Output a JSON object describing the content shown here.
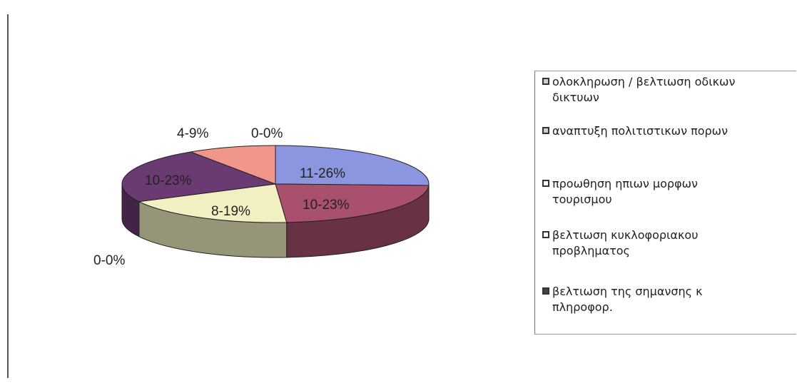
{
  "chart_data": {
    "type": "pie",
    "style": "3d",
    "slices": [
      {
        "label": "11-26%",
        "value": 11,
        "percent": 26,
        "color": "#8C96E0"
      },
      {
        "label": "10-23%",
        "value": 10,
        "percent": 23,
        "color": "#A8506E"
      },
      {
        "label": "8-19%",
        "value": 8,
        "percent": 19,
        "color": "#F2F0C2"
      },
      {
        "label": "10-23%",
        "value": 10,
        "percent": 23,
        "color": "#6A3A72"
      },
      {
        "label": "4-9%",
        "value": 4,
        "percent": 9,
        "color": "#F0968A"
      },
      {
        "label": "0-0%",
        "value": 0,
        "percent": 0,
        "color": "#ffffff"
      },
      {
        "label": "0-0%",
        "value": 0,
        "percent": 0,
        "color": "#ffffff"
      }
    ],
    "legend": [
      {
        "text": "ολοκληρωση / βελτιωση οδικων δικτυων",
        "swatch": "#cfcfcf"
      },
      {
        "text": "αναπτυξη πολιτιστικων πορων",
        "swatch": "#cfcfcf"
      },
      {
        "text": "προωθηση ηπιων μορφων τουρισμου",
        "swatch": "#ffffff"
      },
      {
        "text": "βελτιωση κυκλοφοριακου προβληματος",
        "swatch": "#ffffff"
      },
      {
        "text": "βελτιωση της σημανσης κ πληροφορ.",
        "swatch": "#444444"
      }
    ],
    "legend_position": "right"
  }
}
